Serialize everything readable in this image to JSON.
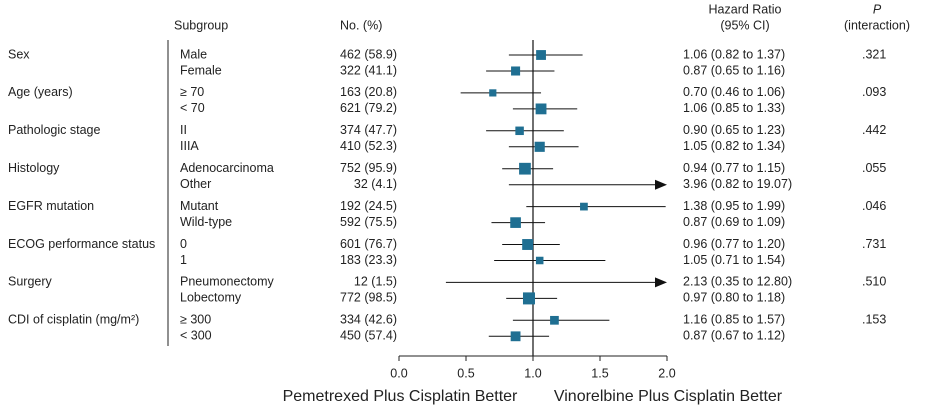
{
  "chart_data": {
    "type": "forest",
    "headers": {
      "subgroup": "Subgroup",
      "n": "No. (%)",
      "hr": [
        "Hazard Ratio",
        "(95% CI)"
      ],
      "p": [
        "P",
        "(interaction)"
      ]
    },
    "xlim": [
      0,
      2
    ],
    "xticks": [
      {
        "value": 0,
        "label": "0.0"
      },
      {
        "value": 0.5,
        "label": "0.5"
      },
      {
        "value": 1,
        "label": "1.0"
      },
      {
        "value": 1.5,
        "label": "1.5"
      },
      {
        "value": 2,
        "label": "2.0"
      }
    ],
    "reference": 1,
    "color": "#1f6f92",
    "xlabel_left": "Pemetrexed Plus Cisplatin Better",
    "xlabel_right": "Vinorelbine Plus Cisplatin Better",
    "groups": [
      {
        "name": "Sex",
        "p": ".321",
        "rows": [
          {
            "subgroup": "Male",
            "n": "462 (58.9)",
            "hr": 1.06,
            "lo": 0.82,
            "hi": 1.37,
            "label": "1.06 (0.82 to 1.37)"
          },
          {
            "subgroup": "Female",
            "n": "322 (41.1)",
            "hr": 0.87,
            "lo": 0.65,
            "hi": 1.16,
            "label": "0.87 (0.65 to 1.16)"
          }
        ]
      },
      {
        "name": "Age (years)",
        "p": ".093",
        "rows": [
          {
            "subgroup": "≥ 70",
            "n": "163 (20.8)",
            "hr": 0.7,
            "lo": 0.46,
            "hi": 1.06,
            "label": "0.70 (0.46 to 1.06)"
          },
          {
            "subgroup": "< 70",
            "n": "621 (79.2)",
            "hr": 1.06,
            "lo": 0.85,
            "hi": 1.33,
            "label": "1.06 (0.85 to 1.33)"
          }
        ]
      },
      {
        "name": "Pathologic stage",
        "p": ".442",
        "rows": [
          {
            "subgroup": "II",
            "n": "374 (47.7)",
            "hr": 0.9,
            "lo": 0.65,
            "hi": 1.23,
            "label": "0.90 (0.65 to 1.23)"
          },
          {
            "subgroup": "IIIA",
            "n": "410 (52.3)",
            "hr": 1.05,
            "lo": 0.82,
            "hi": 1.34,
            "label": "1.05 (0.82 to 1.34)"
          }
        ]
      },
      {
        "name": "Histology",
        "p": ".055",
        "rows": [
          {
            "subgroup": "Adenocarcinoma",
            "n": "752 (95.9)",
            "hr": 0.94,
            "lo": 0.77,
            "hi": 1.15,
            "label": "0.94 (0.77 to 1.15)"
          },
          {
            "subgroup": "Other",
            "n": "32 (4.1)",
            "hr": 3.96,
            "lo": 0.82,
            "hi": 19.07,
            "label": "3.96 (0.82 to 19.07)"
          }
        ]
      },
      {
        "name": "EGFR mutation",
        "p": ".046",
        "rows": [
          {
            "subgroup": "Mutant",
            "n": "192 (24.5)",
            "hr": 1.38,
            "lo": 0.95,
            "hi": 1.99,
            "label": "1.38 (0.95 to 1.99)"
          },
          {
            "subgroup": "Wild-type",
            "n": "592 (75.5)",
            "hr": 0.87,
            "lo": 0.69,
            "hi": 1.09,
            "label": "0.87 (0.69 to 1.09)"
          }
        ]
      },
      {
        "name": "ECOG performance status",
        "p": ".731",
        "rows": [
          {
            "subgroup": "0",
            "n": "601 (76.7)",
            "hr": 0.96,
            "lo": 0.77,
            "hi": 1.2,
            "label": "0.96 (0.77 to 1.20)"
          },
          {
            "subgroup": "1",
            "n": "183 (23.3)",
            "hr": 1.05,
            "lo": 0.71,
            "hi": 1.54,
            "label": "1.05 (0.71 to 1.54)"
          }
        ]
      },
      {
        "name": "Surgery",
        "p": ".510",
        "rows": [
          {
            "subgroup": "Pneumonectomy",
            "n": "12 (1.5)",
            "hr": 2.13,
            "lo": 0.35,
            "hi": 12.8,
            "label": "2.13 (0.35 to 12.80)"
          },
          {
            "subgroup": "Lobectomy",
            "n": "772 (98.5)",
            "hr": 0.97,
            "lo": 0.8,
            "hi": 1.18,
            "label": "0.97 (0.80 to 1.18)"
          }
        ]
      },
      {
        "name": "CDI of cisplatin (mg/m²)",
        "p": ".153",
        "rows": [
          {
            "subgroup": "≥ 300",
            "n": "334 (42.6)",
            "hr": 1.16,
            "lo": 0.85,
            "hi": 1.57,
            "label": "1.16 (0.85 to 1.57)"
          },
          {
            "subgroup": "< 300",
            "n": "450 (57.4)",
            "hr": 0.87,
            "lo": 0.67,
            "hi": 1.12,
            "label": "0.87 (0.67 to 1.12)"
          }
        ]
      }
    ]
  }
}
